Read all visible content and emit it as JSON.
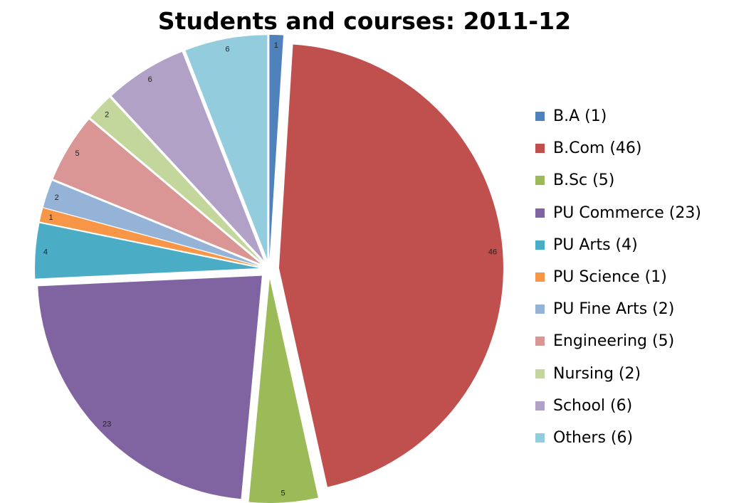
{
  "chart_data": {
    "type": "pie",
    "title": "Students and courses: 2011-12",
    "slices": [
      {
        "label": "B.A",
        "value": 1,
        "legend": "B.A (1)",
        "color": "#4F81BD"
      },
      {
        "label": "B.Com",
        "value": 46,
        "legend": "B.Com (46)",
        "color": "#C0504D"
      },
      {
        "label": "B.Sc",
        "value": 5,
        "legend": "B.Sc (5)",
        "color": "#9BBB59"
      },
      {
        "label": "PU Commerce",
        "value": 23,
        "legend": "PU Commerce (23)",
        "color": "#8064A2"
      },
      {
        "label": "PU Arts",
        "value": 4,
        "legend": "PU Arts (4)",
        "color": "#4BACC6"
      },
      {
        "label": "PU Science",
        "value": 1,
        "legend": "PU Science (1)",
        "color": "#F79646"
      },
      {
        "label": "PU Fine Arts",
        "value": 2,
        "legend": "PU Fine Arts (2)",
        "color": "#95B3D7"
      },
      {
        "label": "Engineering",
        "value": 5,
        "legend": "Engineering (5)",
        "color": "#DA9694"
      },
      {
        "label": "Nursing",
        "value": 2,
        "legend": "Nursing (2)",
        "color": "#C3D69B"
      },
      {
        "label": "School",
        "value": 6,
        "legend": "School (6)",
        "color": "#B2A1C7"
      },
      {
        "label": "Others",
        "value": 6,
        "legend": "Others (6)",
        "color": "#93CDDD"
      }
    ],
    "exploded": true,
    "legend_position": "right"
  }
}
